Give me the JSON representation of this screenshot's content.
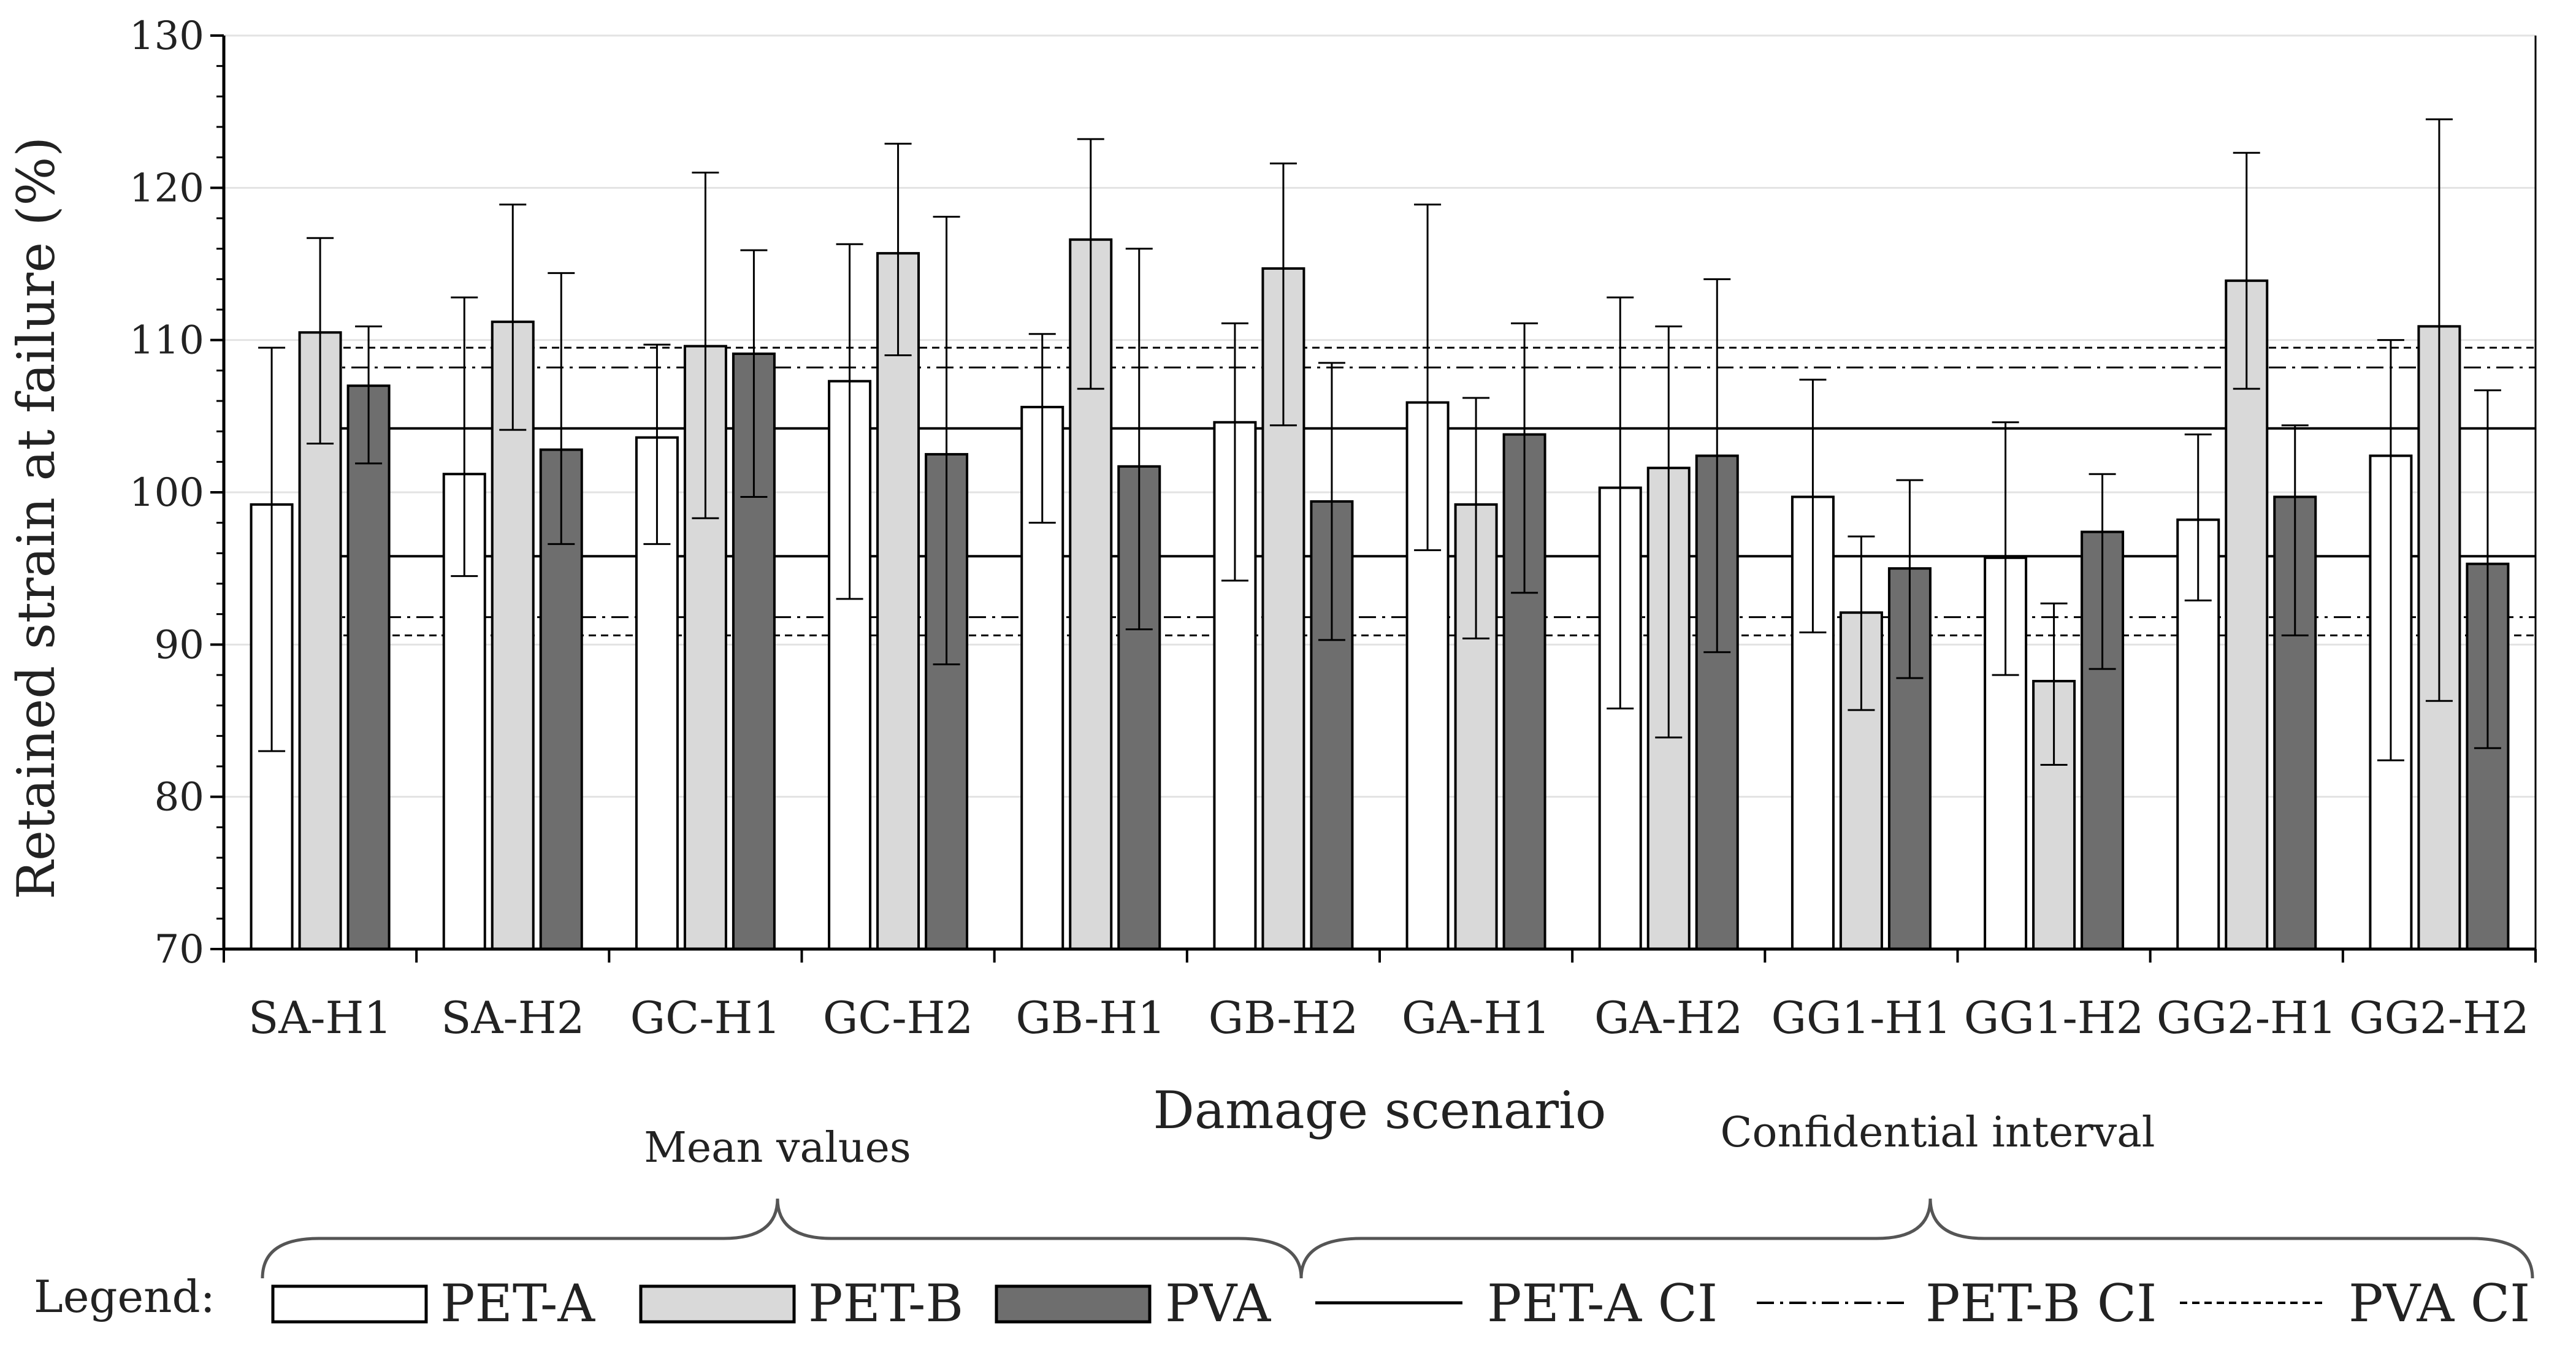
{
  "chart_data": {
    "type": "bar",
    "xlabel": "Damage scenario",
    "ylabel": "Retained strain at failure (%)",
    "ylim": [
      70,
      130
    ],
    "yticks": [
      70,
      80,
      90,
      100,
      110,
      120,
      130
    ],
    "grid": true,
    "categories": [
      "SA-H1",
      "SA-H2",
      "GC-H1",
      "GC-H2",
      "GB-H1",
      "GB-H2",
      "GA-H1",
      "GA-H2",
      "GG1-H1",
      "GG1-H2",
      "GG2-H1",
      "GG2-H2"
    ],
    "series": [
      {
        "name": "PET-A",
        "color": "#ffffff",
        "values": [
          99.2,
          101.2,
          103.6,
          107.3,
          105.6,
          104.6,
          105.9,
          100.3,
          99.7,
          95.7,
          98.2,
          102.4
        ],
        "err_low": [
          83.0,
          94.5,
          96.6,
          93.0,
          98.0,
          94.2,
          96.2,
          85.8,
          90.8,
          88.0,
          92.9,
          82.4
        ],
        "err_high": [
          109.5,
          112.8,
          109.7,
          116.3,
          110.4,
          111.1,
          118.9,
          112.8,
          107.4,
          104.6,
          103.8,
          110.0
        ]
      },
      {
        "name": "PET-B",
        "color": "#d9d9d9",
        "values": [
          110.5,
          111.2,
          109.6,
          115.7,
          116.6,
          114.7,
          99.2,
          101.6,
          92.1,
          87.6,
          113.9,
          110.9
        ],
        "err_low": [
          103.2,
          104.1,
          98.3,
          109.0,
          106.8,
          104.4,
          90.4,
          83.9,
          85.7,
          82.1,
          106.8,
          86.3
        ],
        "err_high": [
          116.7,
          118.9,
          121.0,
          122.9,
          123.2,
          121.6,
          106.2,
          110.9,
          97.1,
          92.7,
          122.3,
          124.5
        ]
      },
      {
        "name": "PVA",
        "color": "#6e6e6e",
        "values": [
          107.0,
          102.8,
          109.1,
          102.5,
          101.7,
          99.4,
          103.8,
          102.4,
          95.0,
          97.4,
          99.7,
          95.3
        ],
        "err_low": [
          101.9,
          96.6,
          99.7,
          88.7,
          91.0,
          90.3,
          93.4,
          89.5,
          87.8,
          88.4,
          90.6,
          83.2
        ],
        "err_high": [
          110.9,
          114.4,
          115.9,
          118.1,
          116.0,
          108.5,
          111.1,
          114.0,
          100.8,
          101.2,
          104.4,
          106.7
        ]
      }
    ],
    "ci_lines": [
      {
        "name": "PET-A CI",
        "style": "solid",
        "lower": 95.8,
        "upper": 104.2
      },
      {
        "name": "PET-B CI",
        "style": "dash-dot",
        "lower": 91.8,
        "upper": 108.2
      },
      {
        "name": "PVA CI",
        "style": "dashed",
        "lower": 90.6,
        "upper": 109.5
      }
    ]
  },
  "annotations": {
    "mean_values": "Mean values",
    "confidential_interval": "Confidential interval"
  },
  "legend": {
    "prefix": "Legend:",
    "items": [
      {
        "label": "PET-A",
        "kind": "box",
        "color": "#ffffff"
      },
      {
        "label": "PET-B",
        "kind": "box",
        "color": "#d9d9d9"
      },
      {
        "label": "PVA",
        "kind": "box",
        "color": "#6e6e6e"
      },
      {
        "label": "PET-A CI",
        "kind": "line",
        "style": "solid"
      },
      {
        "label": "PET-B CI",
        "kind": "line",
        "style": "dash-dot"
      },
      {
        "label": "PVA CI",
        "kind": "line",
        "style": "dashed"
      }
    ]
  }
}
